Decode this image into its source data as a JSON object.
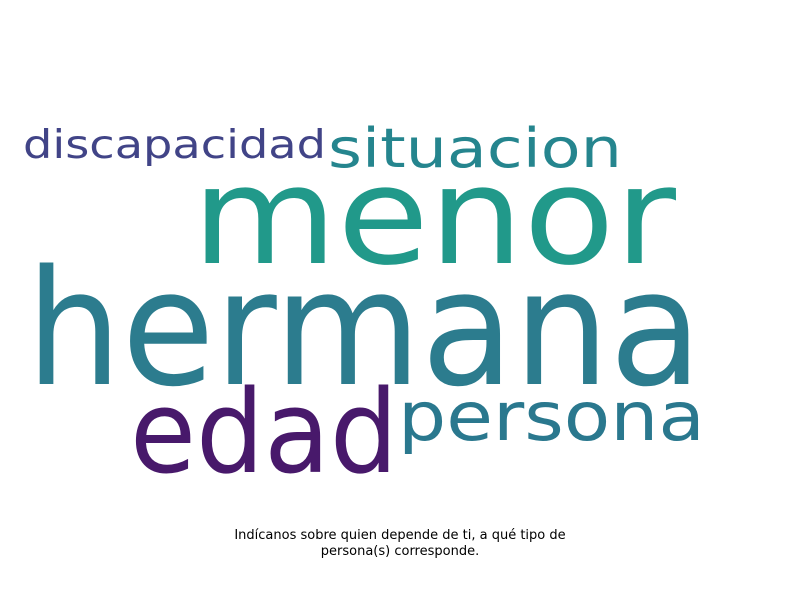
{
  "wordcloud": {
    "words": [
      {
        "text": "hermana",
        "color": "#2c7c8e"
      },
      {
        "text": "menor",
        "color": "#21998a"
      },
      {
        "text": "edad",
        "color": "#48196b"
      },
      {
        "text": "persona",
        "color": "#2a788e"
      },
      {
        "text": "situacion",
        "color": "#25858e"
      },
      {
        "text": "discapacidad",
        "color": "#414487"
      }
    ]
  },
  "caption": {
    "line1": "Indícanos sobre quien depende de ti, a qué tipo de",
    "line2": "persona(s) corresponde."
  }
}
